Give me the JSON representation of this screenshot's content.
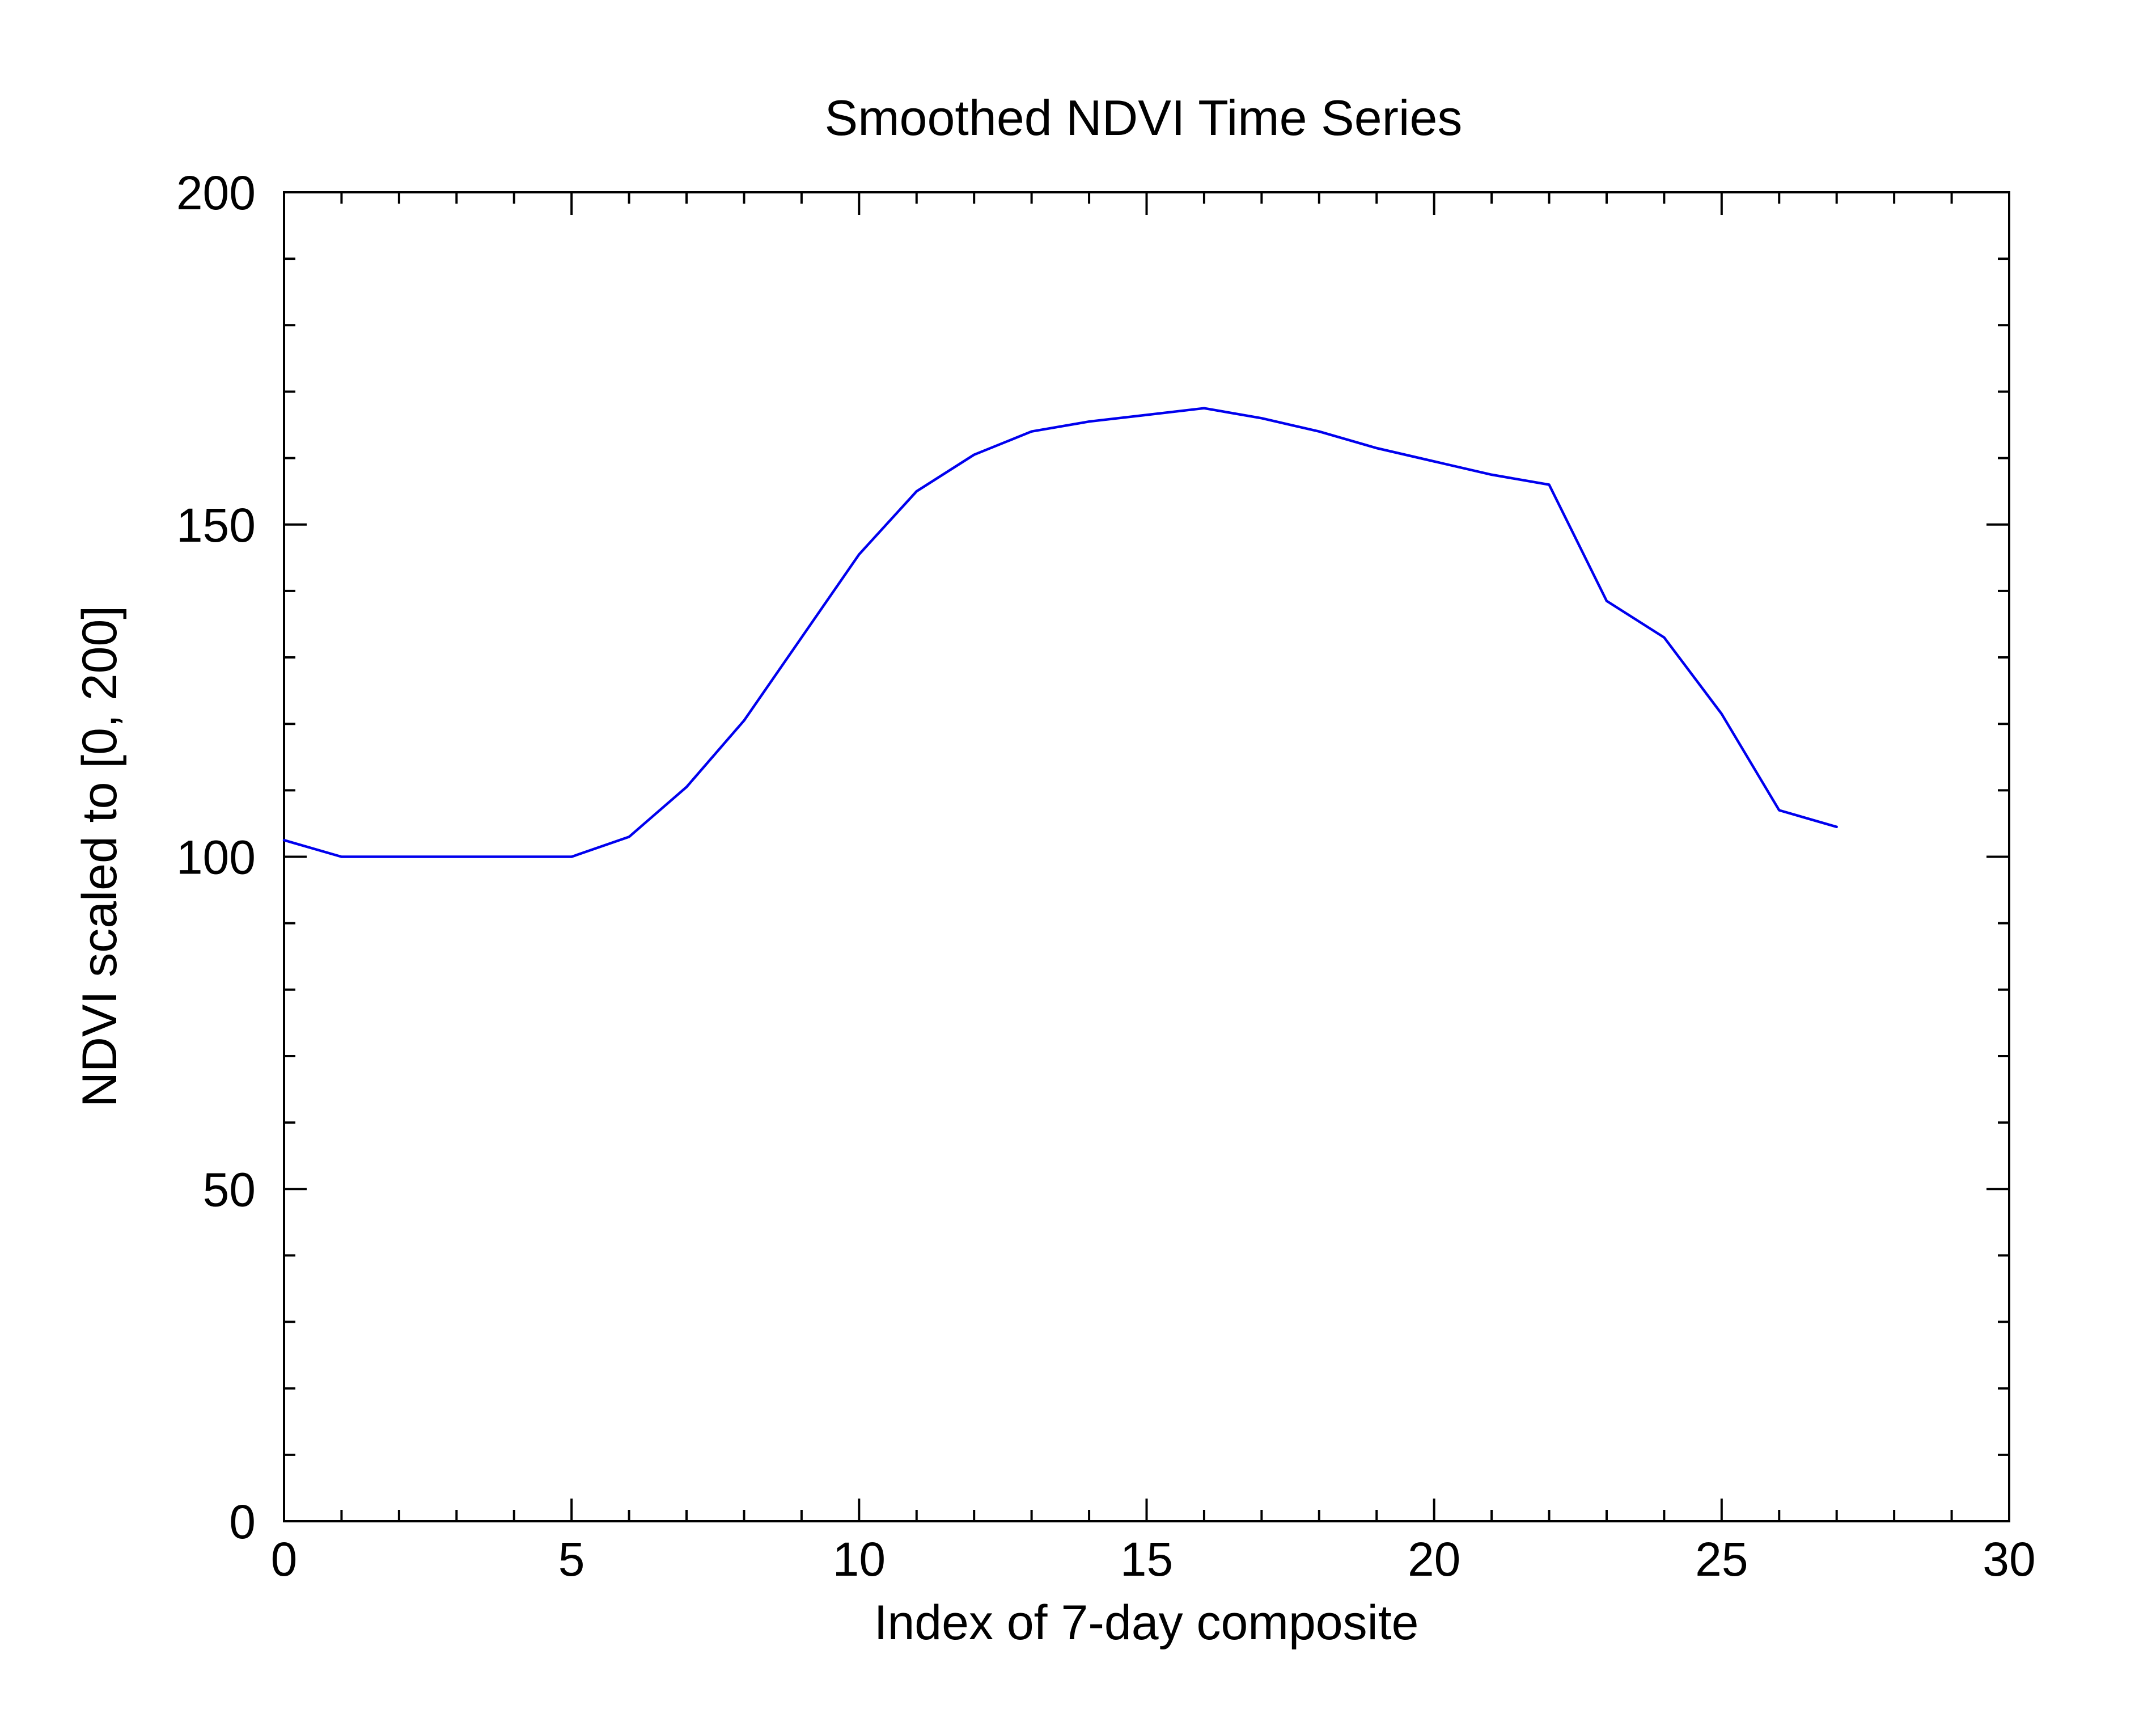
{
  "chart_data": {
    "type": "line",
    "title": "Smoothed NDVI Time Series",
    "xlabel": "Index of 7-day composite",
    "ylabel": "NDVI scaled to [0, 200]",
    "xlim": [
      0,
      30
    ],
    "ylim": [
      0,
      200
    ],
    "x_major_ticks": [
      0,
      5,
      10,
      15,
      20,
      25,
      30
    ],
    "x_tick_labels": [
      "0",
      "5",
      "10",
      "15",
      "20",
      "25",
      "30"
    ],
    "x_minor_step": 1,
    "y_major_ticks": [
      0,
      50,
      100,
      150,
      200
    ],
    "y_tick_labels": [
      "0",
      "50",
      "100",
      "150",
      "200"
    ],
    "y_minor_step": 10,
    "grid": false,
    "series": [
      {
        "color": "#0000ee",
        "x": [
          0,
          1,
          2,
          3,
          4,
          5,
          6,
          7,
          8,
          9,
          10,
          11,
          12,
          13,
          14,
          15,
          16,
          17,
          18,
          19,
          20,
          21,
          22,
          23,
          24,
          25,
          26,
          27
        ],
        "y": [
          102.5,
          100,
          100,
          100,
          100,
          100,
          103,
          110.5,
          120.5,
          133,
          145.5,
          155,
          160.5,
          164,
          165.5,
          166.5,
          167.5,
          166,
          164,
          161.5,
          159.5,
          157.5,
          156,
          138.5,
          133,
          121.5,
          107,
          104.5
        ]
      }
    ]
  }
}
